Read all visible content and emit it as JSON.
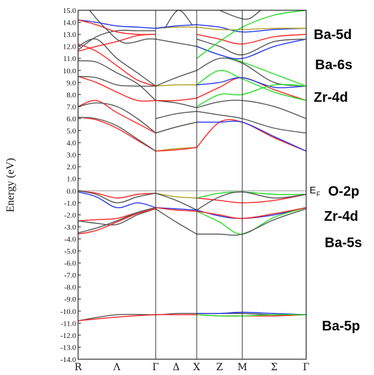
{
  "chart_data": {
    "type": "line",
    "title": "",
    "xlabel": "",
    "ylabel": "Energy (eV)",
    "ylim": [
      -14.0,
      15.0
    ],
    "ytick_step": 1.0,
    "grid": false,
    "kpoints": [
      {
        "label": "R",
        "x": 0.0
      },
      {
        "label": "Λ",
        "x": 0.17
      },
      {
        "label": "Γ",
        "x": 0.34
      },
      {
        "label": "Δ",
        "x": 0.43
      },
      {
        "label": "X",
        "x": 0.52
      },
      {
        "label": "Z",
        "x": 0.62
      },
      {
        "label": "M",
        "x": 0.72
      },
      {
        "label": "Σ",
        "x": 0.86
      },
      {
        "label": "Γ",
        "x": 1.0
      }
    ],
    "vertical_lines": [
      0.34,
      0.52,
      0.72
    ],
    "fermi_level": 0.0,
    "fermi_label": "E",
    "fermi_label_sub": "F",
    "orbital_labels": [
      {
        "text": "Ba-5d",
        "energy": 13.0
      },
      {
        "text": "Ba-6s",
        "energy": 10.5
      },
      {
        "text": "Zr-4d",
        "energy": 7.8
      },
      {
        "text": "O-2p",
        "energy": 0.0
      },
      {
        "text": "Zr-4d",
        "energy": -2.1
      },
      {
        "text": "Ba-5s",
        "energy": -4.3
      },
      {
        "text": "Ba-5p",
        "energy": -11.2
      }
    ],
    "series_colors": {
      "black": "#555555",
      "red": "#ff2020",
      "green": "#22dd22",
      "blue": "#2233ee",
      "olive": "#b0a020"
    },
    "series": [
      {
        "color": "black",
        "x": [
          0,
          0.17,
          0.34,
          0.43,
          0.52,
          0.62,
          0.72,
          0.86,
          1.0
        ],
        "y": [
          -10.8,
          -10.3,
          -10.3,
          -10.2,
          -10.2,
          -10.2,
          -10.2,
          -10.3,
          -10.3
        ]
      },
      {
        "color": "red",
        "x": [
          0,
          0.17,
          0.34,
          0.43,
          0.52,
          0.62,
          0.72,
          0.86,
          1.0
        ],
        "y": [
          -10.8,
          -10.5,
          -10.3,
          -10.3,
          -10.3,
          -10.4,
          -10.4,
          -10.4,
          -10.3
        ]
      },
      {
        "color": "blue",
        "x": [
          0.52,
          0.62,
          0.72,
          0.86,
          1.0
        ],
        "y": [
          -10.2,
          -10.2,
          -10.1,
          -10.2,
          -10.3
        ]
      },
      {
        "color": "green",
        "x": [
          0.52,
          0.62,
          0.72,
          0.86,
          1.0
        ],
        "y": [
          -10.3,
          -10.4,
          -10.4,
          -10.3,
          -10.3
        ]
      },
      {
        "color": "red",
        "x": [
          0,
          0.08,
          0.17,
          0.26,
          0.34
        ],
        "y": [
          0.0,
          -0.2,
          -0.6,
          -0.3,
          -0.2
        ]
      },
      {
        "color": "black",
        "x": [
          0,
          0.08,
          0.17,
          0.26,
          0.34
        ],
        "y": [
          0.0,
          -0.3,
          -1.0,
          -0.5,
          -0.2
        ]
      },
      {
        "color": "blue",
        "x": [
          0,
          0.08,
          0.17,
          0.26,
          0.34
        ],
        "y": [
          -0.1,
          -0.5,
          -1.4,
          -1.0,
          -1.4
        ]
      },
      {
        "color": "red",
        "x": [
          0,
          0.08,
          0.17,
          0.26,
          0.34
        ],
        "y": [
          -2.5,
          -2.4,
          -2.3,
          -1.8,
          -1.4
        ]
      },
      {
        "color": "black",
        "x": [
          0,
          0.08,
          0.17,
          0.26,
          0.34
        ],
        "y": [
          -2.5,
          -2.7,
          -2.8,
          -2.0,
          -1.5
        ]
      },
      {
        "color": "red",
        "x": [
          0,
          0.08,
          0.17,
          0.26,
          0.34
        ],
        "y": [
          -3.6,
          -3.3,
          -2.6,
          -1.9,
          -1.5
        ]
      },
      {
        "color": "black",
        "x": [
          0,
          0.08,
          0.17,
          0.26,
          0.34
        ],
        "y": [
          -3.5,
          -3.1,
          -2.5,
          -1.8,
          -1.4
        ]
      },
      {
        "color": "olive",
        "x": [
          0.34,
          0.43,
          0.52
        ],
        "y": [
          -0.2,
          -0.5,
          -0.6
        ]
      },
      {
        "color": "black",
        "x": [
          0.34,
          0.43,
          0.52
        ],
        "y": [
          -0.2,
          -0.8,
          -1.6
        ]
      },
      {
        "color": "blue",
        "x": [
          0.34,
          0.43,
          0.52
        ],
        "y": [
          -1.4,
          -1.5,
          -1.6
        ]
      },
      {
        "color": "red",
        "x": [
          0.34,
          0.43,
          0.52
        ],
        "y": [
          -1.4,
          -1.6,
          -1.7
        ]
      },
      {
        "color": "black",
        "x": [
          0.34,
          0.43,
          0.52
        ],
        "y": [
          -1.5,
          -2.6,
          -3.6
        ]
      },
      {
        "color": "red",
        "x": [
          0.52,
          0.62,
          0.72,
          0.86,
          1.0
        ],
        "y": [
          -0.6,
          -0.8,
          -1.0,
          -0.8,
          -0.3
        ]
      },
      {
        "color": "green",
        "x": [
          0.52,
          0.62,
          0.72,
          0.86,
          1.0
        ],
        "y": [
          -0.6,
          -0.2,
          -0.1,
          -0.3,
          -0.3
        ]
      },
      {
        "color": "black",
        "x": [
          0.52,
          0.62,
          0.72,
          0.86,
          1.0
        ],
        "y": [
          -1.6,
          -0.5,
          -0.1,
          -0.6,
          -0.3
        ]
      },
      {
        "color": "blue",
        "x": [
          0.52,
          0.62,
          0.72,
          0.86,
          1.0
        ],
        "y": [
          -1.6,
          -2.1,
          -2.3,
          -2.0,
          -1.4
        ]
      },
      {
        "color": "green",
        "x": [
          0.52,
          0.62,
          0.72,
          0.86,
          1.0
        ],
        "y": [
          -1.7,
          -2.6,
          -3.6,
          -2.2,
          -1.4
        ]
      },
      {
        "color": "black",
        "x": [
          0.52,
          0.62,
          0.72,
          0.86,
          1.0
        ],
        "y": [
          -3.6,
          -3.6,
          -3.6,
          -2.4,
          -1.5
        ]
      },
      {
        "color": "red",
        "x": [
          0.52,
          0.62,
          0.72,
          0.86,
          1.0
        ],
        "y": [
          -1.7,
          -2.0,
          -2.3,
          -1.9,
          -1.4
        ]
      },
      {
        "color": "red",
        "x": [
          0,
          0.08,
          0.17,
          0.26,
          0.34
        ],
        "y": [
          6.1,
          5.9,
          5.2,
          4.2,
          3.3
        ]
      },
      {
        "color": "black",
        "x": [
          0,
          0.08,
          0.17,
          0.26,
          0.34
        ],
        "y": [
          6.1,
          6.0,
          5.4,
          4.3,
          3.3
        ]
      },
      {
        "color": "red",
        "x": [
          0,
          0.08,
          0.17,
          0.26,
          0.34
        ],
        "y": [
          7.0,
          7.5,
          6.5,
          5.6,
          4.8
        ]
      },
      {
        "color": "black",
        "x": [
          0,
          0.08,
          0.17,
          0.26,
          0.34
        ],
        "y": [
          7.0,
          7.3,
          7.0,
          6.0,
          4.8
        ]
      },
      {
        "color": "red",
        "x": [
          0,
          0.08,
          0.17,
          0.26,
          0.34
        ],
        "y": [
          9.5,
          9.0,
          8.2,
          7.5,
          7.5
        ]
      },
      {
        "color": "black",
        "x": [
          0,
          0.08,
          0.17,
          0.26,
          0.34
        ],
        "y": [
          9.5,
          9.4,
          8.8,
          8.7,
          8.7
        ]
      },
      {
        "color": "black",
        "x": [
          0,
          0.08,
          0.17,
          0.26,
          0.34
        ],
        "y": [
          10.8,
          10.7,
          9.8,
          8.9,
          7.5
        ]
      },
      {
        "color": "red",
        "x": [
          0,
          0.08,
          0.17,
          0.26,
          0.34
        ],
        "y": [
          12.2,
          11.6,
          10.4,
          9.2,
          8.7
        ]
      },
      {
        "color": "black",
        "x": [
          0,
          0.08,
          0.17,
          0.26,
          0.34
        ],
        "y": [
          12.0,
          12.6,
          11.0,
          9.8,
          8.7
        ]
      },
      {
        "color": "red",
        "x": [
          0,
          0.08,
          0.17,
          0.26,
          0.34
        ],
        "y": [
          11.6,
          12.0,
          12.4,
          12.9,
          13.0
        ]
      },
      {
        "color": "black",
        "x": [
          0,
          0.08,
          0.17,
          0.26,
          0.34
        ],
        "y": [
          11.7,
          12.8,
          13.3,
          13.3,
          13.3
        ]
      },
      {
        "color": "blue",
        "x": [
          0,
          0.08,
          0.17,
          0.26,
          0.34
        ],
        "y": [
          14.2,
          14.0,
          13.7,
          13.6,
          13.5
        ]
      },
      {
        "color": "red",
        "x": [
          0,
          0.08,
          0.17,
          0.26,
          0.34
        ],
        "y": [
          14.2,
          13.8,
          13.2,
          13.0,
          13.0
        ]
      },
      {
        "color": "black",
        "x": [
          0.05,
          0.12,
          0.2,
          0.3,
          0.34
        ],
        "y": [
          15.0,
          13.5,
          12.3,
          12.6,
          12.6
        ]
      },
      {
        "color": "olive",
        "x": [
          0.34,
          0.43,
          0.52
        ],
        "y": [
          3.3,
          3.5,
          3.6
        ]
      },
      {
        "color": "red",
        "x": [
          0.34,
          0.43,
          0.52
        ],
        "y": [
          3.3,
          3.4,
          3.6
        ]
      },
      {
        "color": "olive",
        "x": [
          0.34,
          0.43,
          0.52
        ],
        "y": [
          4.8,
          5.3,
          5.7
        ]
      },
      {
        "color": "black",
        "x": [
          0.34,
          0.43,
          0.52
        ],
        "y": [
          4.8,
          5.3,
          5.7
        ]
      },
      {
        "color": "black",
        "x": [
          0.34,
          0.43,
          0.52
        ],
        "y": [
          6.0,
          6.4,
          6.6
        ]
      },
      {
        "color": "black",
        "x": [
          0.34,
          0.43,
          0.52
        ],
        "y": [
          7.5,
          7.3,
          6.9
        ]
      },
      {
        "color": "red",
        "x": [
          0.34,
          0.43,
          0.52
        ],
        "y": [
          7.5,
          7.5,
          7.7
        ]
      },
      {
        "color": "olive",
        "x": [
          0.34,
          0.43,
          0.52
        ],
        "y": [
          8.7,
          8.8,
          8.8
        ]
      },
      {
        "color": "black",
        "x": [
          0.34,
          0.43,
          0.52
        ],
        "y": [
          8.7,
          9.4,
          10.0
        ]
      },
      {
        "color": "black",
        "x": [
          0.34,
          0.43,
          0.52
        ],
        "y": [
          12.6,
          12.3,
          12.0
        ]
      },
      {
        "color": "olive",
        "x": [
          0.34,
          0.43,
          0.52
        ],
        "y": [
          13.5,
          13.6,
          13.6
        ]
      },
      {
        "color": "blue",
        "x": [
          0.34,
          0.43,
          0.52
        ],
        "y": [
          13.5,
          13.7,
          13.8
        ]
      },
      {
        "color": "black",
        "x": [
          0.38,
          0.44,
          0.5
        ],
        "y": [
          13.5,
          15.0,
          13.8
        ]
      },
      {
        "color": "red",
        "x": [
          0.52,
          0.62,
          0.72,
          0.86,
          1.0
        ],
        "y": [
          3.6,
          5.7,
          5.7,
          4.4,
          3.3
        ]
      },
      {
        "color": "blue",
        "x": [
          0.52,
          0.62,
          0.72,
          0.86,
          1.0
        ],
        "y": [
          5.7,
          5.7,
          5.7,
          4.5,
          3.3
        ]
      },
      {
        "color": "black",
        "x": [
          0.52,
          0.62,
          0.72,
          0.86,
          1.0
        ],
        "y": [
          6.6,
          6.3,
          6.0,
          5.2,
          4.8
        ]
      },
      {
        "color": "black",
        "x": [
          0.52,
          0.62,
          0.72,
          0.86,
          1.0
        ],
        "y": [
          6.9,
          7.4,
          7.5,
          7.0,
          6.0
        ]
      },
      {
        "color": "red",
        "x": [
          0.52,
          0.62,
          0.72,
          0.86,
          1.0
        ],
        "y": [
          7.7,
          8.6,
          9.4,
          8.4,
          7.5
        ]
      },
      {
        "color": "green",
        "x": [
          0.52,
          0.62,
          0.72,
          0.86,
          1.0
        ],
        "y": [
          8.8,
          10.0,
          9.3,
          8.2,
          7.5
        ]
      },
      {
        "color": "blue",
        "x": [
          0.52,
          0.62,
          0.72,
          0.86,
          1.0
        ],
        "y": [
          8.8,
          9.0,
          9.4,
          8.6,
          8.7
        ]
      },
      {
        "color": "black",
        "x": [
          0.52,
          0.62,
          0.72,
          0.86,
          1.0
        ],
        "y": [
          10.0,
          11.0,
          10.6,
          9.0,
          8.7
        ]
      },
      {
        "color": "green",
        "x": [
          0.52,
          0.62,
          0.72,
          0.86,
          1.0
        ],
        "y": [
          12.0,
          11.3,
          10.7,
          9.7,
          8.7
        ]
      },
      {
        "color": "green",
        "x": [
          0.52,
          0.62,
          0.72,
          0.86,
          1.0
        ],
        "y": [
          7.0,
          8.0,
          8.0,
          8.8,
          8.7
        ]
      },
      {
        "color": "blue",
        "x": [
          0.52,
          0.62,
          0.72,
          0.86,
          1.0
        ],
        "y": [
          12.0,
          11.3,
          11.0,
          12.0,
          12.6
        ]
      },
      {
        "color": "black",
        "x": [
          0.52,
          0.62,
          0.72,
          0.86,
          1.0
        ],
        "y": [
          12.6,
          12.0,
          11.3,
          12.4,
          12.6
        ]
      },
      {
        "color": "red",
        "x": [
          0.52,
          0.62,
          0.72,
          0.86,
          1.0
        ],
        "y": [
          13.0,
          12.6,
          12.2,
          12.8,
          13.0
        ]
      },
      {
        "color": "blue",
        "x": [
          0.52,
          0.62,
          0.72,
          0.86,
          1.0
        ],
        "y": [
          13.8,
          13.6,
          13.2,
          13.4,
          13.5
        ]
      },
      {
        "color": "olive",
        "x": [
          0.52,
          0.62,
          0.72,
          0.86,
          1.0
        ],
        "y": [
          13.6,
          13.4,
          13.4,
          13.5,
          13.5
        ]
      },
      {
        "color": "green",
        "x": [
          0.52,
          0.62,
          0.72,
          0.86,
          1.0
        ],
        "y": [
          11.0,
          12.4,
          13.6,
          14.6,
          15.0
        ]
      },
      {
        "color": "black",
        "x": [
          0.62,
          0.7,
          0.75,
          0.8
        ],
        "y": [
          15.0,
          14.4,
          14.3,
          15.0
        ]
      }
    ]
  }
}
